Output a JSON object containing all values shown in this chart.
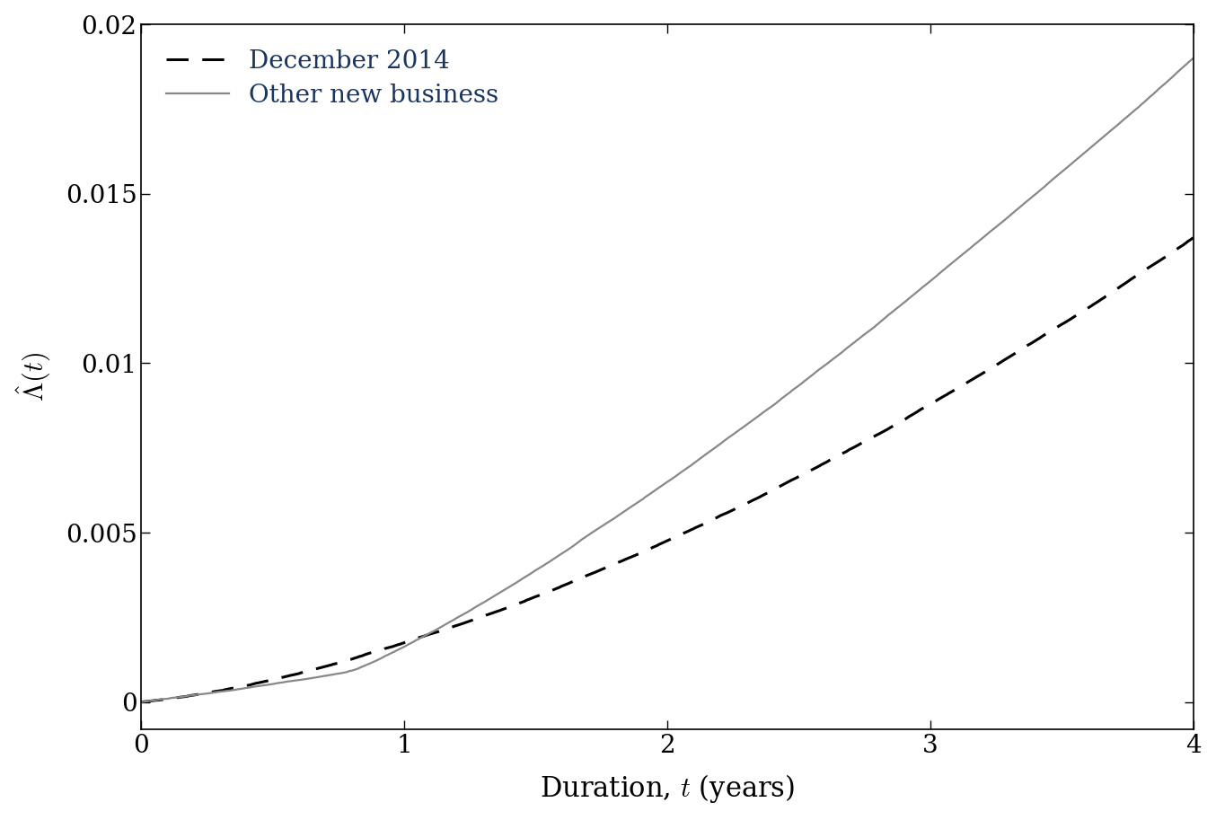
{
  "title": "",
  "xlabel": "Duration, $t$ (years)",
  "ylabel": "$\\hat{\\Lambda}(t)$",
  "xlim": [
    0,
    4
  ],
  "ylim": [
    -0.0008,
    0.02
  ],
  "yticks": [
    0,
    0.005,
    0.01,
    0.015,
    0.02
  ],
  "xticks": [
    0,
    1,
    2,
    3,
    4
  ],
  "legend_labels": [
    "December 2014",
    "Other new business"
  ],
  "line1_color": "black",
  "line1_style": "dashed",
  "line1_linewidth": 2.2,
  "line2_color": "#888888",
  "line2_style": "solid",
  "line2_linewidth": 1.6,
  "background_color": "white",
  "font_size": 22,
  "legend_fontsize": 20,
  "legend_text_color": "#1a3560",
  "seed": 7,
  "line1_end_value": 0.0137,
  "line2_end_value": 0.019
}
